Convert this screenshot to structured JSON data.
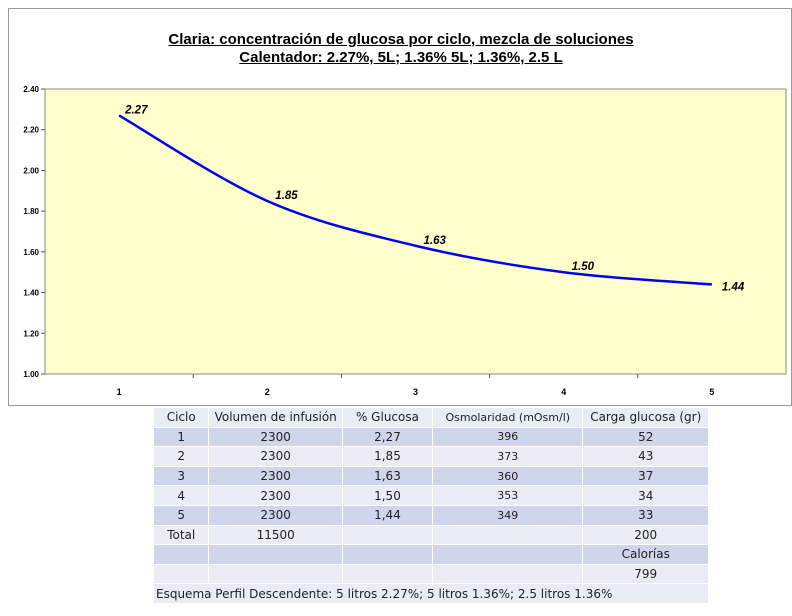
{
  "chart_data": {
    "type": "line",
    "title": "Claria: concentración de glucosa por ciclo, mezcla de soluciones",
    "subtitle": "Calentador: 2.27%, 5L; 1.36% 5L; 1.36%, 2.5 L",
    "xlabel": "",
    "ylabel": "",
    "categories": [
      "1",
      "2",
      "3",
      "4",
      "5"
    ],
    "y_ticks": [
      "1.00",
      "1.20",
      "1.40",
      "1.60",
      "1.80",
      "2.00",
      "2.20",
      "2.40"
    ],
    "ylim": [
      1.0,
      2.4
    ],
    "series": [
      {
        "values": [
          2.27,
          1.85,
          1.63,
          1.5,
          1.44
        ],
        "labels": [
          "2.27",
          "1.85",
          "1.63",
          "1.50",
          "1.44"
        ]
      }
    ],
    "grid": false,
    "legend": "none",
    "colors": {
      "line": "#0000ee",
      "plot_bg": "#ffffcc",
      "plot_border": "#888888"
    }
  },
  "table": {
    "headers": [
      "Ciclo",
      "Volumen de infusión",
      "% Glucosa",
      "Osmolaridad (mOsm/l)",
      "Carga glucosa (gr)"
    ],
    "rows": [
      [
        "1",
        "2300",
        "2,27",
        "396",
        "52"
      ],
      [
        "2",
        "2300",
        "1,85",
        "373",
        "43"
      ],
      [
        "3",
        "2300",
        "1,63",
        "360",
        "37"
      ],
      [
        "4",
        "2300",
        "1,50",
        "353",
        "34"
      ],
      [
        "5",
        "2300",
        "1,44",
        "349",
        "33"
      ],
      [
        "Total",
        "11500",
        "",
        "",
        "200"
      ],
      [
        "",
        "",
        "",
        "",
        "Calorías"
      ],
      [
        "",
        "",
        "",
        "",
        "799"
      ]
    ],
    "note": "Esquema Perfil Descendente: 5 litros 2.27%; 5 litros 1.36%; 2.5 litros 1.36%"
  }
}
